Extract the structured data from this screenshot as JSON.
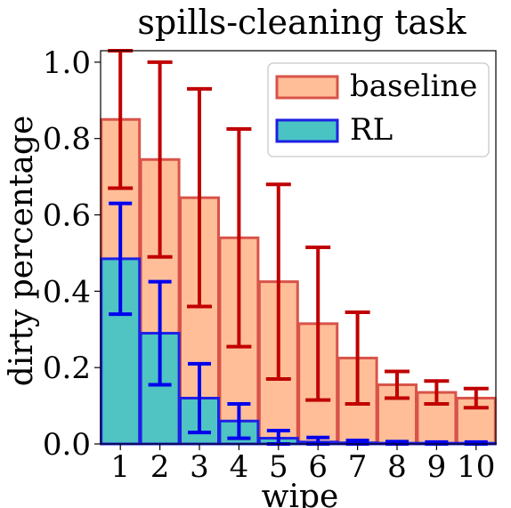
{
  "chart_data": {
    "type": "bar",
    "title": "spills-cleaning task",
    "xlabel": "wipe",
    "ylabel": "dirty percentage",
    "categories": [
      "1",
      "2",
      "3",
      "4",
      "5",
      "6",
      "7",
      "8",
      "9",
      "10"
    ],
    "ylim": [
      0,
      1.03
    ],
    "yticks": [
      "0.0",
      "0.2",
      "0.4",
      "0.6",
      "0.8",
      "1.0"
    ],
    "legend_position": "top-right",
    "series": [
      {
        "name": "baseline",
        "values": [
          0.85,
          0.745,
          0.645,
          0.54,
          0.425,
          0.315,
          0.225,
          0.155,
          0.135,
          0.12
        ],
        "error": [
          0.18,
          0.255,
          0.285,
          0.285,
          0.255,
          0.2,
          0.12,
          0.035,
          0.03,
          0.025
        ],
        "fill": "#ffbe98",
        "edge": "#d9534a",
        "error_color": "#c00000"
      },
      {
        "name": "RL",
        "values": [
          0.485,
          0.29,
          0.12,
          0.06,
          0.015,
          0.005,
          0.003,
          0.002,
          0.002,
          0.002
        ],
        "error": [
          0.145,
          0.135,
          0.09,
          0.045,
          0.02,
          0.012,
          0.006,
          0.004,
          0.003,
          0.003
        ],
        "fill": "#49c4c3",
        "fill_opacity": 0.97,
        "edge": "#1f1fe6",
        "error_color": "#0000ee"
      }
    ]
  }
}
